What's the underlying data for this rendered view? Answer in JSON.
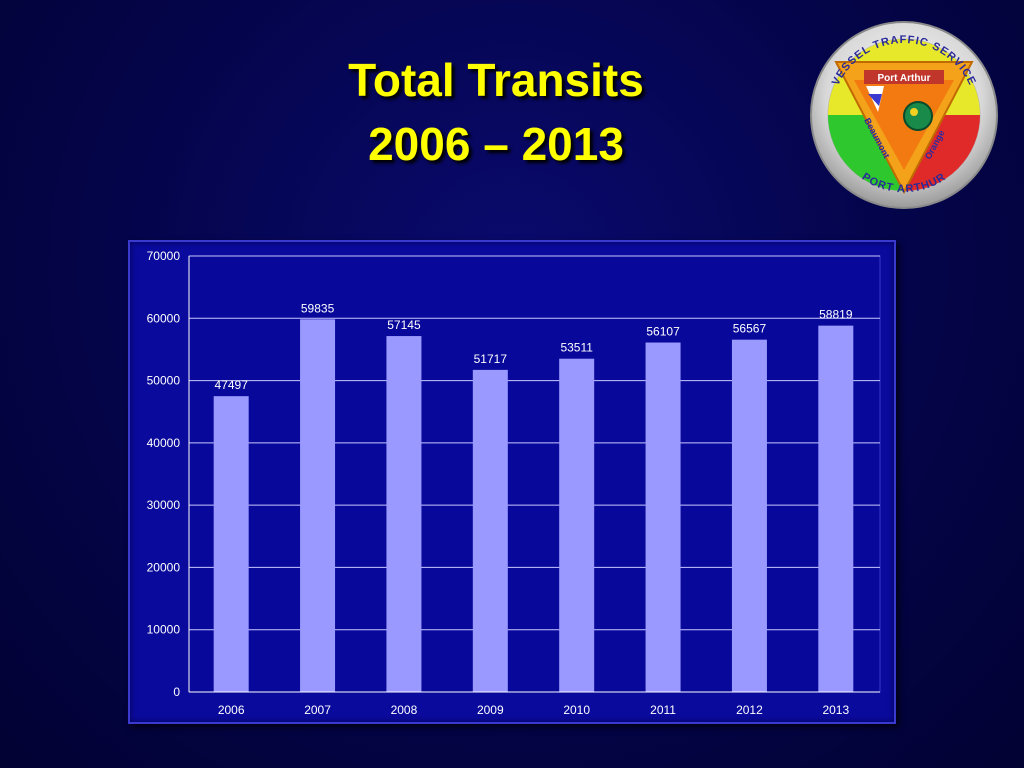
{
  "slide": {
    "title_line1": "Total Transits",
    "title_line2": "2006 – 2013"
  },
  "logo": {
    "top_text": "VESSEL TRAFFIC SERVICE",
    "bottom_text": "PORT ARTHUR",
    "banner": "Port Arthur",
    "left_text": "Beaumont",
    "right_text": "Orange",
    "icon": "vts-seal-icon"
  },
  "colors": {
    "background": "#04044a",
    "title": "#ffff00",
    "plot_area": "#0a0a9c",
    "bar": "#9999ff",
    "text": "#ffffff"
  },
  "chart_data": {
    "type": "bar",
    "title": "",
    "xlabel": "",
    "ylabel": "",
    "categories": [
      "2006",
      "2007",
      "2008",
      "2009",
      "2010",
      "2011",
      "2012",
      "2013"
    ],
    "values": [
      47497,
      59835,
      57145,
      51717,
      53511,
      56107,
      56567,
      58819
    ],
    "data_labels": [
      "47497",
      "59835",
      "57145",
      "51717",
      "53511",
      "56107",
      "56567",
      "58819"
    ],
    "ylim": [
      0,
      70000
    ],
    "yticks": [
      0,
      10000,
      20000,
      30000,
      40000,
      50000,
      60000,
      70000
    ],
    "ytick_labels": [
      "0",
      "10000",
      "20000",
      "30000",
      "40000",
      "50000",
      "60000",
      "70000"
    ],
    "grid": true,
    "legend": "none"
  }
}
